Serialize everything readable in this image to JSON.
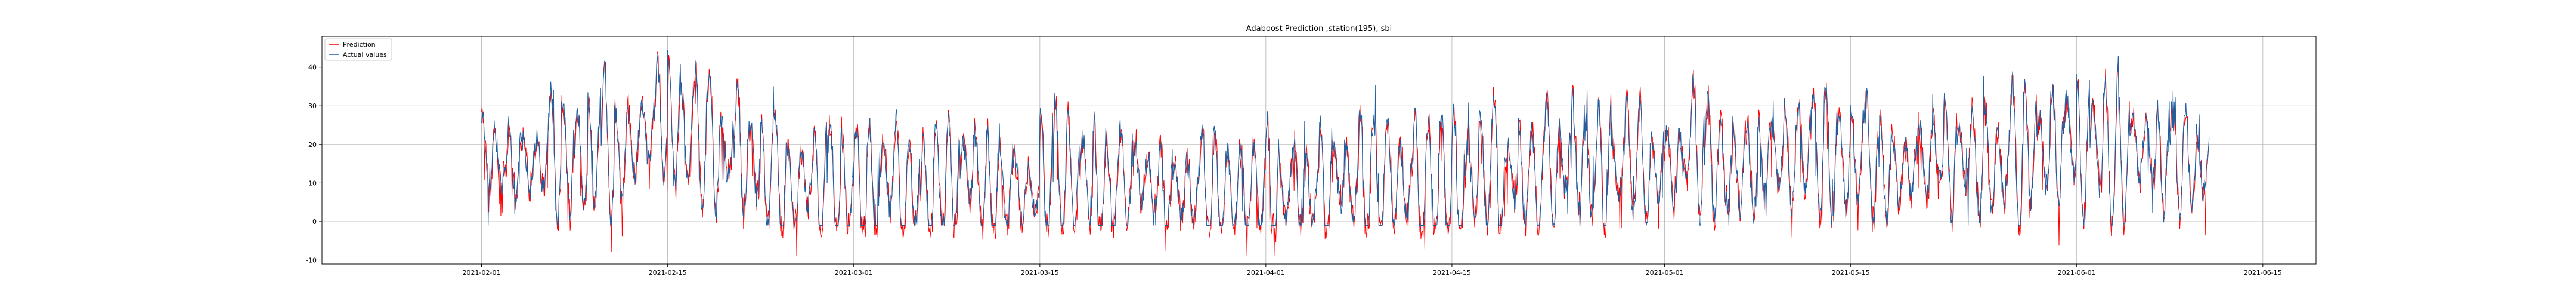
{
  "chart_data": {
    "type": "line",
    "title": "Adaboost Prediction ,station(195), sbi",
    "xlabel": "",
    "ylabel": "",
    "xlim": [
      "2021-01-20",
      "2021-06-19"
    ],
    "ylim": [
      -11,
      48
    ],
    "x_ticks": [
      "2021-02-01",
      "2021-02-15",
      "2021-03-01",
      "2021-03-15",
      "2021-04-01",
      "2021-04-15",
      "2021-05-01",
      "2021-05-15",
      "2021-06-01",
      "2021-06-15"
    ],
    "y_ticks": [
      -10,
      0,
      10,
      20,
      30,
      40
    ],
    "grid": true,
    "legend": {
      "placement": "top-left"
    },
    "data_range": [
      "2021-02-01",
      "2021-06-11"
    ],
    "samples_per_day": 24,
    "series": [
      {
        "name": "Prediction",
        "color": "#ff0000"
      },
      {
        "name": "Actual values",
        "color": "#1f5fa0"
      }
    ]
  }
}
